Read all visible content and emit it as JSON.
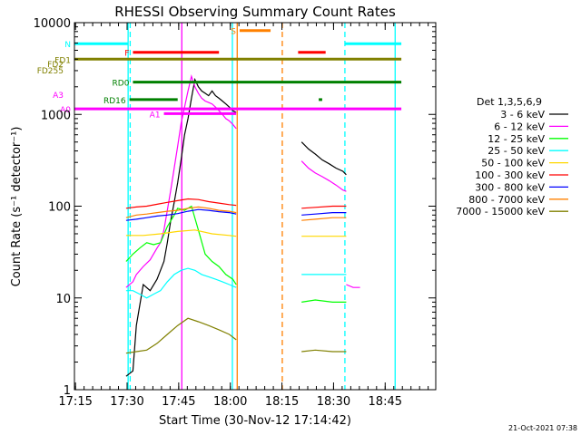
{
  "chart_data": {
    "type": "line",
    "title": "RHESSI Observing Summary Count Rates",
    "xlabel": "Start Time (30-Nov-12 17:14:42)",
    "ylabel": "Count Rate (s⁻¹ detector⁻¹)",
    "x_unit": "minutes after 17:14:42",
    "xlim": [
      0,
      105
    ],
    "ylim": [
      1,
      10000
    ],
    "y_scale": "log",
    "x_ticks": [
      {
        "t": 0.3,
        "label": "17:15"
      },
      {
        "t": 15.3,
        "label": "17:30"
      },
      {
        "t": 30.3,
        "label": "17:45"
      },
      {
        "t": 45.3,
        "label": "18:00"
      },
      {
        "t": 60.3,
        "label": "18:15"
      },
      {
        "t": 75.3,
        "label": "18:30"
      },
      {
        "t": 90.3,
        "label": "18:45"
      }
    ],
    "y_ticks": [
      {
        "v": 1,
        "label": "1"
      },
      {
        "v": 10,
        "label": "10"
      },
      {
        "v": 100,
        "label": "100"
      },
      {
        "v": 1000,
        "label": "1000"
      },
      {
        "v": 10000,
        "label": "10000"
      }
    ],
    "legend_title": "Det 1,3,5,6,9",
    "legend_position": "right",
    "series": [
      {
        "name": "3 - 6 keV",
        "color": "#000000",
        "seg1": [
          [
            15,
            1.4
          ],
          [
            17,
            1.6
          ],
          [
            18,
            5
          ],
          [
            20,
            14
          ],
          [
            22,
            12
          ],
          [
            24,
            16
          ],
          [
            25,
            20
          ],
          [
            26,
            25
          ],
          [
            27,
            40
          ],
          [
            28,
            70
          ],
          [
            29,
            110
          ],
          [
            30,
            180
          ],
          [
            31,
            320
          ],
          [
            32,
            600
          ],
          [
            33,
            900
          ],
          [
            34,
            1500
          ],
          [
            35,
            2400
          ],
          [
            36,
            2000
          ],
          [
            37,
            1800
          ],
          [
            38,
            1700
          ],
          [
            39,
            1600
          ],
          [
            40,
            1800
          ],
          [
            41,
            1600
          ],
          [
            42,
            1500
          ],
          [
            43,
            1400
          ],
          [
            44,
            1300
          ],
          [
            45,
            1200
          ],
          [
            46,
            1100
          ],
          [
            47,
            1050
          ]
        ],
        "seg2": [
          [
            66,
            500
          ],
          [
            68,
            420
          ],
          [
            70,
            370
          ],
          [
            72,
            320
          ],
          [
            74,
            290
          ],
          [
            76,
            260
          ],
          [
            78,
            240
          ],
          [
            79,
            220
          ]
        ]
      },
      {
        "name": "6 - 12 keV",
        "color": "#ff00ff",
        "seg1": [
          [
            15,
            13
          ],
          [
            17,
            15
          ],
          [
            18,
            18
          ],
          [
            20,
            22
          ],
          [
            22,
            26
          ],
          [
            24,
            35
          ],
          [
            25,
            40
          ],
          [
            26,
            55
          ],
          [
            27,
            90
          ],
          [
            28,
            150
          ],
          [
            29,
            260
          ],
          [
            30,
            450
          ],
          [
            31,
            800
          ],
          [
            32,
            1200
          ],
          [
            33,
            1800
          ],
          [
            34,
            2600
          ],
          [
            35,
            2000
          ],
          [
            36,
            1700
          ],
          [
            37,
            1500
          ],
          [
            38,
            1400
          ],
          [
            39,
            1350
          ],
          [
            40,
            1300
          ],
          [
            41,
            1200
          ],
          [
            42,
            1100
          ],
          [
            43,
            1000
          ],
          [
            44,
            900
          ],
          [
            45,
            850
          ],
          [
            46,
            780
          ],
          [
            47,
            700
          ]
        ],
        "seg2": [
          [
            66,
            310
          ],
          [
            68,
            260
          ],
          [
            70,
            230
          ],
          [
            72,
            210
          ],
          [
            74,
            190
          ],
          [
            76,
            170
          ],
          [
            78,
            150
          ],
          [
            79,
            145
          ]
        ],
        "seg3": [
          [
            79,
            14
          ],
          [
            81,
            13
          ],
          [
            83,
            13
          ]
        ]
      },
      {
        "name": "12 - 25 keV",
        "color": "#00ff00",
        "seg1": [
          [
            15,
            25
          ],
          [
            17,
            30
          ],
          [
            19,
            35
          ],
          [
            21,
            40
          ],
          [
            23,
            38
          ],
          [
            25,
            40
          ],
          [
            27,
            60
          ],
          [
            29,
            80
          ],
          [
            30,
            95
          ],
          [
            32,
            90
          ],
          [
            34,
            100
          ],
          [
            36,
            55
          ],
          [
            38,
            30
          ],
          [
            40,
            25
          ],
          [
            42,
            22
          ],
          [
            44,
            18
          ],
          [
            46,
            16
          ],
          [
            47,
            14
          ]
        ],
        "seg2": [
          [
            66,
            9
          ],
          [
            70,
            9.5
          ],
          [
            75,
            9
          ],
          [
            79,
            9
          ]
        ]
      },
      {
        "name": "25 - 50 keV",
        "color": "#00ffff",
        "seg1": [
          [
            15,
            12
          ],
          [
            17,
            12
          ],
          [
            19,
            11
          ],
          [
            21,
            10
          ],
          [
            23,
            11
          ],
          [
            25,
            12
          ],
          [
            27,
            15
          ],
          [
            29,
            18
          ],
          [
            31,
            20
          ],
          [
            33,
            21
          ],
          [
            35,
            20
          ],
          [
            37,
            18
          ],
          [
            39,
            17
          ],
          [
            41,
            16
          ],
          [
            43,
            15
          ],
          [
            45,
            14
          ],
          [
            47,
            13
          ]
        ],
        "seg2": [
          [
            66,
            18
          ],
          [
            70,
            18
          ],
          [
            75,
            18
          ],
          [
            79,
            18
          ]
        ]
      },
      {
        "name": "50 - 100 keV",
        "color": "#ffd700",
        "seg1": [
          [
            15,
            48
          ],
          [
            20,
            48
          ],
          [
            25,
            50
          ],
          [
            30,
            53
          ],
          [
            35,
            55
          ],
          [
            40,
            50
          ],
          [
            45,
            48
          ],
          [
            47,
            47
          ]
        ],
        "seg2": [
          [
            66,
            47
          ],
          [
            70,
            47
          ],
          [
            75,
            47
          ],
          [
            79,
            47
          ]
        ]
      },
      {
        "name": "100 - 300 keV",
        "color": "#ff0000",
        "seg1": [
          [
            15,
            95
          ],
          [
            18,
            98
          ],
          [
            21,
            100
          ],
          [
            24,
            105
          ],
          [
            27,
            110
          ],
          [
            30,
            115
          ],
          [
            33,
            120
          ],
          [
            36,
            118
          ],
          [
            39,
            112
          ],
          [
            42,
            108
          ],
          [
            45,
            104
          ],
          [
            47,
            102
          ]
        ],
        "seg2": [
          [
            66,
            95
          ],
          [
            70,
            97
          ],
          [
            75,
            100
          ],
          [
            79,
            100
          ]
        ]
      },
      {
        "name": "300 - 800 keV",
        "color": "#0000ff",
        "seg1": [
          [
            15,
            70
          ],
          [
            18,
            72
          ],
          [
            21,
            75
          ],
          [
            24,
            78
          ],
          [
            27,
            80
          ],
          [
            30,
            83
          ],
          [
            33,
            88
          ],
          [
            36,
            92
          ],
          [
            39,
            90
          ],
          [
            42,
            87
          ],
          [
            45,
            85
          ],
          [
            47,
            82
          ]
        ],
        "seg2": [
          [
            66,
            80
          ],
          [
            70,
            82
          ],
          [
            75,
            85
          ],
          [
            79,
            85
          ]
        ]
      },
      {
        "name": "800 - 7000 keV",
        "color": "#ff8000",
        "seg1": [
          [
            15,
            75
          ],
          [
            18,
            80
          ],
          [
            21,
            82
          ],
          [
            24,
            85
          ],
          [
            27,
            88
          ],
          [
            30,
            90
          ],
          [
            33,
            95
          ],
          [
            36,
            98
          ],
          [
            39,
            95
          ],
          [
            42,
            90
          ],
          [
            45,
            88
          ],
          [
            47,
            85
          ]
        ],
        "seg2": [
          [
            66,
            70
          ],
          [
            70,
            72
          ],
          [
            75,
            75
          ],
          [
            79,
            75
          ]
        ]
      },
      {
        "name": "7000 - 15000 keV",
        "color": "#808000",
        "seg1": [
          [
            15,
            2.5
          ],
          [
            18,
            2.6
          ],
          [
            21,
            2.7
          ],
          [
            24,
            3.2
          ],
          [
            27,
            4
          ],
          [
            30,
            5
          ],
          [
            33,
            6
          ],
          [
            36,
            5.5
          ],
          [
            39,
            5
          ],
          [
            42,
            4.5
          ],
          [
            45,
            4
          ],
          [
            47,
            3.5
          ]
        ],
        "seg2": [
          [
            66,
            2.6
          ],
          [
            70,
            2.7
          ],
          [
            75,
            2.6
          ],
          [
            79,
            2.6
          ]
        ]
      }
    ],
    "state_bars": [
      {
        "label": "N",
        "color": "#00ffff",
        "y": 5900,
        "spans": [
          [
            0,
            15.5
          ],
          [
            78.5,
            95
          ]
        ]
      },
      {
        "label": "S",
        "color": "#ff8000",
        "y": 8200,
        "spans": [
          [
            48,
            57
          ]
        ]
      },
      {
        "label": "F",
        "color": "#ff0000",
        "y": 4750,
        "spans": [
          [
            17,
            42
          ],
          [
            65,
            73
          ]
        ]
      },
      {
        "label": "FD1",
        "color": "#808000",
        "y": 4000,
        "spans": [
          [
            0,
            95
          ]
        ]
      },
      {
        "label": "FD2",
        "color": "#808000",
        "y": 3600,
        "spans": []
      },
      {
        "label": "FD255",
        "color": "#808000",
        "y": 3050,
        "spans": []
      },
      {
        "label": "RD0",
        "color": "#008000",
        "y": 2250,
        "spans": [
          [
            17,
            95
          ]
        ]
      },
      {
        "label": "A3",
        "color": "#ff00ff",
        "y": 1650,
        "spans": []
      },
      {
        "label": "RD16",
        "color": "#008000",
        "y": 1450,
        "spans": [
          [
            16,
            30
          ],
          [
            71,
            72
          ]
        ]
      },
      {
        "label": "A0",
        "color": "#ff00ff",
        "y": 1150,
        "spans": [
          [
            0,
            95
          ]
        ]
      },
      {
        "label": "A1",
        "color": "#ff00ff",
        "y": 1020,
        "spans": [
          [
            26,
            47
          ]
        ]
      }
    ],
    "vertical_markers": [
      {
        "color": "#00ffff",
        "style": "solid",
        "t": 15.6
      },
      {
        "color": "#00ffff",
        "style": "dashed",
        "t": 16.2
      },
      {
        "color": "#ff00ff",
        "style": "solid",
        "t": 31.2
      },
      {
        "color": "#00ffff",
        "style": "solid",
        "t": 45.9
      },
      {
        "color": "#ff8000",
        "style": "solid",
        "t": 47.3
      },
      {
        "color": "#ff8000",
        "style": "dashed",
        "t": 60.4
      },
      {
        "color": "#00ffff",
        "style": "dashed",
        "t": 78.6
      },
      {
        "color": "#00ffff",
        "style": "solid",
        "t": 93.2
      }
    ]
  },
  "footer_timestamp": "21-Oct-2021 07:38"
}
